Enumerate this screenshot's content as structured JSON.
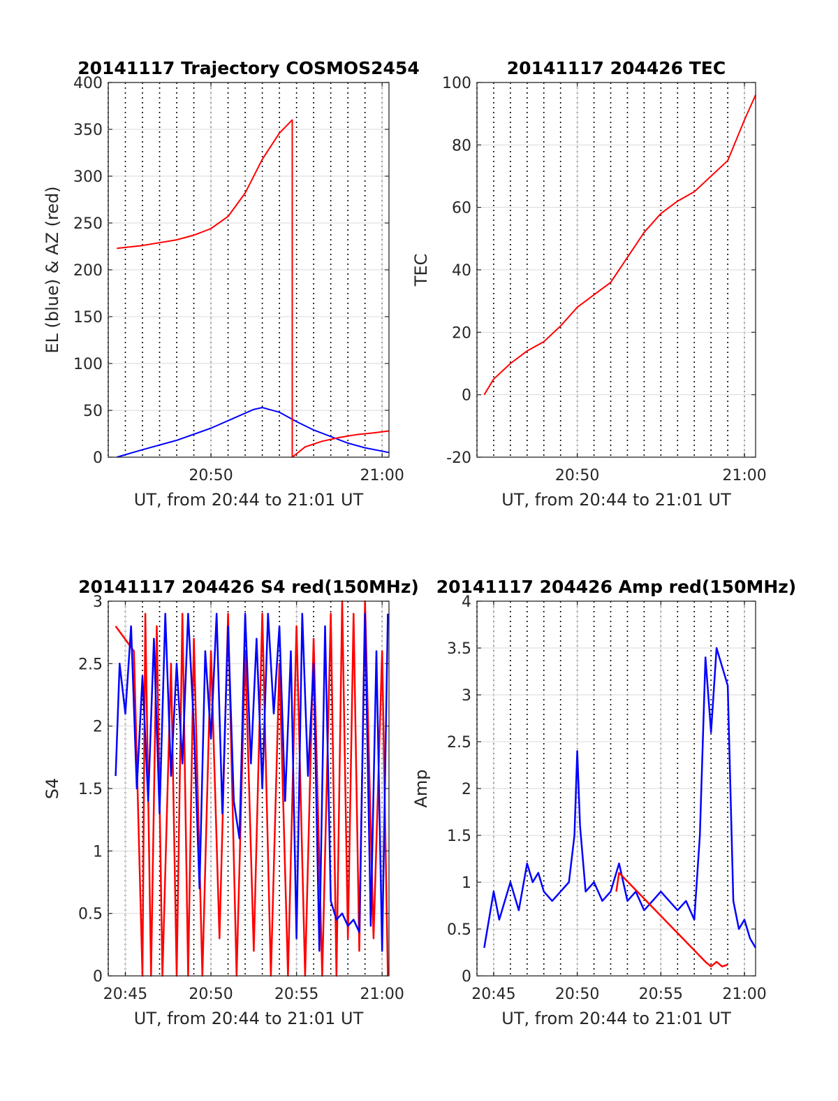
{
  "colors": {
    "el": "#0000ff",
    "az": "#ff0000",
    "s4_red": "#ff0000",
    "s4_blue": "#0000ff",
    "grid": "#d9d9d9",
    "axis": "#262626"
  },
  "chart_data": [
    {
      "type": "line",
      "title": "20141117 Trajectory COSMOS2454",
      "xlabel": "UT, from 20:44 to 21:01 UT",
      "ylabel": "EL (blue) & AZ (red)",
      "xlim": [
        "20:44:00",
        "21:00:24"
      ],
      "ylim": [
        0,
        400
      ],
      "xticks": [
        "20:50",
        "21:00"
      ],
      "yticks": [
        "0",
        "50",
        "100",
        "150",
        "200",
        "250",
        "300",
        "350",
        "400"
      ],
      "grid": "on",
      "series": [
        {
          "color": "#0000ff",
          "x": [
            "20:44:30",
            "20:46:00",
            "20:48:00",
            "20:50:00",
            "20:51:30",
            "20:52:30",
            "20:53:00",
            "20:54:00",
            "20:55:00",
            "20:56:00",
            "20:57:00",
            "20:58:00",
            "20:59:00",
            "21:00:24"
          ],
          "y": [
            0,
            8,
            18,
            31,
            43,
            51,
            53,
            48,
            38,
            29,
            22,
            15,
            10,
            5
          ]
        },
        {
          "color": "#ff0000",
          "x": [
            "20:44:30",
            "20:46:00",
            "20:48:00",
            "20:49:00",
            "20:50:00",
            "20:51:00",
            "20:52:00",
            "20:53:00",
            "20:54:00",
            "20:54:45",
            "20:54:45",
            "20:55:30",
            "20:56:30",
            "20:57:30",
            "20:58:30",
            "20:59:30",
            "21:00:24"
          ],
          "y": [
            223,
            226,
            232,
            237,
            244,
            257,
            282,
            318,
            346,
            360,
            0,
            11,
            17,
            21,
            24,
            26,
            28
          ]
        }
      ]
    },
    {
      "type": "line",
      "title": "20141117 204426 TEC",
      "xlabel": "UT, from 20:44 to 21:01 UT",
      "ylabel": "TEC",
      "xlim": [
        "20:44:00",
        "21:00:40"
      ],
      "ylim": [
        -20,
        100
      ],
      "xticks": [
        "20:50",
        "21:00"
      ],
      "yticks": [
        "-20",
        "0",
        "20",
        "40",
        "60",
        "80",
        "100"
      ],
      "grid": "on",
      "series": [
        {
          "color": "#ff0000",
          "x": [
            "20:44:26",
            "20:45:00",
            "20:46:00",
            "20:47:00",
            "20:48:00",
            "20:49:00",
            "20:50:00",
            "20:51:00",
            "20:52:00",
            "20:53:00",
            "20:54:00",
            "20:55:00",
            "20:56:00",
            "20:57:00",
            "20:58:00",
            "20:59:00",
            "21:00:00",
            "21:00:40"
          ],
          "y": [
            0,
            5,
            10,
            14,
            17,
            22,
            28,
            32,
            36,
            44,
            52,
            58,
            62,
            65,
            70,
            75,
            88,
            96
          ]
        }
      ]
    },
    {
      "type": "line",
      "title": "20141117 204426 S4 red(150MHz)",
      "xlabel": "UT, from 20:44 to 21:01 UT",
      "ylabel": "S4",
      "xlim": [
        "20:44:00",
        "21:00:24"
      ],
      "ylim": [
        0,
        3
      ],
      "xticks": [
        "20:45",
        "20:50",
        "20:55",
        "21:00"
      ],
      "yticks": [
        "0",
        "0.5",
        "1",
        "1.5",
        "2",
        "2.5",
        "3"
      ],
      "grid": "on",
      "series": [
        {
          "color": "#ff0000",
          "x": [
            "20:44:26",
            "20:45:30",
            "20:46:00",
            "20:46:10",
            "20:46:30",
            "20:46:50",
            "20:47:10",
            "20:47:40",
            "20:48:00",
            "20:48:20",
            "20:48:40",
            "20:49:00",
            "20:49:30",
            "20:50:00",
            "20:50:30",
            "20:51:00",
            "20:51:30",
            "20:52:00",
            "20:52:30",
            "20:53:00",
            "20:53:30",
            "20:54:00",
            "20:54:30",
            "20:55:00",
            "20:55:30",
            "20:56:00",
            "20:56:30",
            "20:57:00",
            "20:57:20",
            "20:57:40",
            "20:58:00",
            "20:58:20",
            "20:58:40",
            "20:59:00",
            "20:59:30",
            "21:00:00",
            "21:00:20"
          ],
          "y": [
            2.8,
            2.6,
            0,
            2.9,
            0,
            2.8,
            0,
            2.5,
            0,
            2.9,
            0,
            2.7,
            0,
            2.6,
            0.3,
            2.9,
            0,
            2.6,
            0.2,
            2.9,
            0,
            2.5,
            0,
            2.8,
            0,
            2.7,
            0,
            2.9,
            0,
            3.0,
            0.3,
            2.9,
            0.2,
            3.0,
            0.3,
            2.6,
            0
          ]
        },
        {
          "color": "#0000ff",
          "x": [
            "20:44:26",
            "20:44:40",
            "20:45:00",
            "20:45:20",
            "20:45:40",
            "20:46:00",
            "20:46:20",
            "20:46:40",
            "20:47:00",
            "20:47:20",
            "20:47:40",
            "20:48:00",
            "20:48:20",
            "20:48:40",
            "20:49:00",
            "20:49:20",
            "20:49:40",
            "20:50:00",
            "20:50:20",
            "20:50:40",
            "20:51:00",
            "20:51:20",
            "20:51:40",
            "20:52:00",
            "20:52:20",
            "20:52:40",
            "20:53:00",
            "20:53:20",
            "20:53:40",
            "20:54:00",
            "20:54:20",
            "20:54:40",
            "20:55:00",
            "20:55:20",
            "20:55:40",
            "20:56:00",
            "20:56:20",
            "20:56:40",
            "20:57:00",
            "20:57:20",
            "20:57:40",
            "20:58:00",
            "20:58:20",
            "20:58:40",
            "20:59:00",
            "20:59:20",
            "20:59:40",
            "21:00:00",
            "21:00:20"
          ],
          "y": [
            1.6,
            2.5,
            2.1,
            2.8,
            1.5,
            2.4,
            1.4,
            2.7,
            1.3,
            2.9,
            1.6,
            2.5,
            1.7,
            2.9,
            2.0,
            0.7,
            2.6,
            1.9,
            2.9,
            1.3,
            2.8,
            1.4,
            1.1,
            2.9,
            1.7,
            2.7,
            1.5,
            2.9,
            2.1,
            2.8,
            1.4,
            2.6,
            0.3,
            2.9,
            1.6,
            2.5,
            0.2,
            2.8,
            0.6,
            0.45,
            0.5,
            0.4,
            0.45,
            0.35,
            2.9,
            0.4,
            2.6,
            0.2,
            2.9
          ]
        }
      ]
    },
    {
      "type": "line",
      "title": "20141117 204426 Amp red(150MHz)",
      "xlabel": "UT, from 20:44 to 21:01 UT",
      "ylabel": "Amp",
      "xlim": [
        "20:44:00",
        "21:00:40"
      ],
      "ylim": [
        0,
        4
      ],
      "xticks": [
        "20:45",
        "20:50",
        "20:55",
        "21:00"
      ],
      "yticks": [
        "0",
        "0.5",
        "1",
        "1.5",
        "2",
        "2.5",
        "3",
        "3.5",
        "4"
      ],
      "grid": "on",
      "series": [
        {
          "color": "#0000ff",
          "x": [
            "20:44:26",
            "20:45:00",
            "20:45:20",
            "20:45:40",
            "20:46:00",
            "20:46:30",
            "20:47:00",
            "20:47:20",
            "20:47:40",
            "20:48:00",
            "20:48:30",
            "20:49:00",
            "20:49:30",
            "20:49:50",
            "20:50:00",
            "20:50:10",
            "20:50:30",
            "20:51:00",
            "20:51:30",
            "20:52:00",
            "20:52:30",
            "20:53:00",
            "20:53:30",
            "20:54:00",
            "20:54:30",
            "20:55:00",
            "20:55:30",
            "20:56:00",
            "20:56:30",
            "20:57:00",
            "20:57:20",
            "20:57:40",
            "20:58:00",
            "20:58:20",
            "20:58:40",
            "20:59:00",
            "20:59:20",
            "20:59:40",
            "21:00:00",
            "21:00:20",
            "21:00:40"
          ],
          "y": [
            0.3,
            0.9,
            0.6,
            0.8,
            1.0,
            0.7,
            1.2,
            1.0,
            1.1,
            0.9,
            0.8,
            0.9,
            1.0,
            1.5,
            2.4,
            1.6,
            0.9,
            1.0,
            0.8,
            0.9,
            1.2,
            0.8,
            0.9,
            0.7,
            0.8,
            0.9,
            0.8,
            0.7,
            0.8,
            0.6,
            1.5,
            3.4,
            2.6,
            3.5,
            3.3,
            3.1,
            0.8,
            0.5,
            0.6,
            0.4,
            0.3
          ]
        },
        {
          "color": "#ff0000",
          "x": [
            "20:52:20",
            "20:52:30",
            "20:57:40",
            "20:58:00",
            "20:58:20",
            "20:58:40",
            "20:59:00"
          ],
          "y": [
            0.9,
            1.1,
            0.15,
            0.1,
            0.15,
            0.1,
            0.12
          ]
        }
      ]
    }
  ]
}
